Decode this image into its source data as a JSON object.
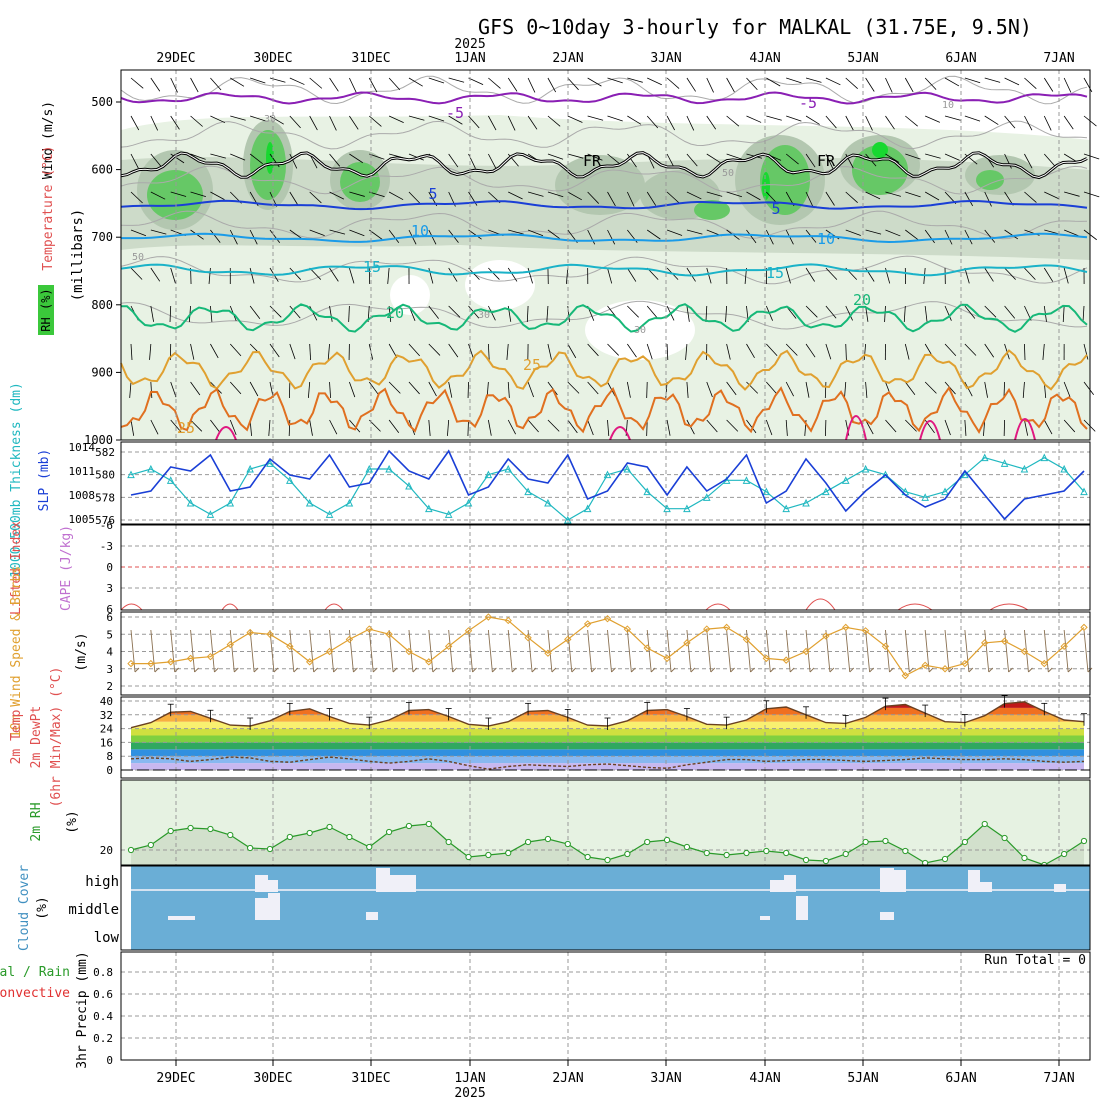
{
  "title": "GFS 0~10day 3-hourly for MALKAL (31.75E, 9.5N)",
  "year_label": "2025",
  "date_labels": [
    "29DEC",
    "30DEC",
    "31DEC",
    "1JAN",
    "2JAN",
    "3JAN",
    "4JAN",
    "5JAN",
    "6JAN",
    "7JAN"
  ],
  "colors": {
    "purple": "#8a1fb4",
    "black": "#000000",
    "blue": "#1a3fd6",
    "lightblue": "#1a9be8",
    "teal": "#1ab2c8",
    "green": "#16b878",
    "orange": "#e0a030",
    "darkorange": "#e07020",
    "magenta": "#e01880",
    "slp": "#1a3fd6",
    "thickness": "#20b8c0",
    "cape": "#e05050",
    "wind": "#e0a030",
    "rh2m": "#2a9a2a",
    "cloud": "#6aaed6"
  },
  "chart_data": [
    {
      "type": "line",
      "name": "upper_air",
      "ylabel": "(millibars)",
      "yaxis_ticks": [
        "500",
        "600",
        "700",
        "800",
        "900",
        "1000"
      ],
      "left_labels": [
        "Wind (m/s)",
        "Temperature (°C)",
        "RH (%)"
      ],
      "isotherm_labels": [
        "-5",
        "-5",
        "FR",
        "FR",
        "5",
        "5",
        "10",
        "10",
        "15",
        "15",
        "20",
        "20",
        "25",
        "25"
      ],
      "rh_labels": [
        "30",
        "50",
        "30",
        "30",
        "10",
        "50"
      ]
    },
    {
      "type": "line",
      "name": "slp_thickness",
      "left_labels": [
        "1000-500mb Thickness (dm)",
        "SLP (mb)"
      ],
      "yticks_left": [
        "582",
        "580",
        "578",
        "576"
      ],
      "yticks_right": [
        "1014",
        "1011",
        "1008",
        "1005"
      ],
      "slp": [
        1008.0,
        1008.5,
        1011.5,
        1011.0,
        1013.0,
        1008.5,
        1009.0,
        1012.5,
        1010.5,
        1010.0,
        1013.0,
        1009.0,
        1009.5,
        1013.5,
        1011.0,
        1010.0,
        1013.5,
        1008.0,
        1009.0,
        1012.5,
        1010.0,
        1009.5,
        1013.0,
        1007.5,
        1008.5,
        1012.0,
        1011.5,
        1008.0,
        1011.5,
        1008.5,
        1010.0,
        1013.0,
        1007.0,
        1008.5,
        1012.5,
        1009.5,
        1006.0,
        1008.5,
        1010.5,
        1008.0,
        1006.5,
        1007.5,
        1011.0,
        1008.0,
        1005.0,
        1007.5,
        1008.0,
        1008.5,
        1011.0
      ],
      "thickness": [
        580.0,
        580.5,
        579.5,
        577.5,
        576.5,
        577.5,
        580.5,
        581.0,
        579.5,
        577.5,
        576.5,
        577.5,
        580.5,
        580.5,
        579.0,
        577.0,
        576.5,
        577.5,
        580.0,
        580.5,
        578.5,
        577.5,
        576.0,
        577.0,
        580.0,
        580.5,
        578.5,
        577.0,
        577.0,
        578.0,
        579.5,
        579.5,
        578.5,
        577.0,
        577.5,
        578.5,
        579.5,
        580.5,
        580.0,
        578.5,
        578.0,
        578.5,
        580.0,
        581.5,
        581.0,
        580.5,
        581.5,
        580.5,
        578.5
      ]
    },
    {
      "type": "line",
      "name": "cape_li",
      "left_labels": [
        "Lifted Index",
        "CAPE (J/kg)"
      ],
      "yticks": [
        "-6",
        "-3",
        "0",
        "3",
        "6"
      ]
    },
    {
      "type": "line",
      "name": "wind10m",
      "left_labels": [
        "10m Wind Speed & Barbs",
        "(m/s)"
      ],
      "yticks": [
        "2",
        "3",
        "4",
        "5",
        "6"
      ],
      "speed": [
        3.3,
        3.3,
        3.4,
        3.6,
        3.7,
        4.4,
        5.1,
        5.0,
        4.3,
        3.4,
        4.0,
        4.7,
        5.3,
        5.0,
        4.0,
        3.4,
        4.3,
        5.2,
        6.0,
        5.8,
        4.8,
        3.9,
        4.7,
        5.6,
        5.9,
        5.3,
        4.2,
        3.6,
        4.5,
        5.3,
        5.4,
        4.7,
        3.6,
        3.5,
        4.0,
        4.9,
        5.4,
        5.2,
        4.3,
        2.6,
        3.2,
        3.0,
        3.3,
        4.5,
        4.6,
        4.0,
        3.3,
        4.3,
        5.4
      ]
    },
    {
      "type": "area",
      "name": "temp2m",
      "left_labels": [
        "2m Temp",
        "2m DewPt",
        "(6hr Min/Max) (°C)"
      ],
      "yticks": [
        "0",
        "8",
        "16",
        "24",
        "32",
        "40"
      ],
      "temp": [
        24.5,
        27.5,
        33.5,
        34.0,
        30.0,
        26.0,
        25.5,
        28.5,
        34.0,
        35.5,
        31.0,
        27.0,
        26.0,
        29.0,
        34.5,
        35.0,
        31.0,
        26.5,
        25.5,
        28.0,
        34.0,
        34.5,
        30.5,
        26.0,
        25.5,
        28.5,
        34.5,
        35.0,
        31.0,
        26.5,
        26.0,
        29.0,
        35.5,
        36.5,
        32.0,
        27.5,
        27.0,
        30.5,
        37.0,
        38.0,
        33.0,
        28.0,
        27.5,
        31.5,
        38.5,
        39.5,
        34.0,
        29.0,
        28.0
      ],
      "dewpt": [
        6.5,
        7.0,
        6.5,
        5.0,
        6.0,
        7.5,
        7.0,
        5.0,
        4.5,
        6.0,
        7.5,
        6.5,
        5.0,
        4.0,
        5.0,
        6.5,
        5.0,
        2.5,
        0.5,
        2.0,
        3.0,
        2.5,
        2.0,
        3.0,
        3.5,
        2.5,
        1.5,
        1.0,
        3.0,
        4.5,
        6.0,
        6.0,
        5.0,
        5.5,
        6.0,
        6.0,
        5.5,
        5.0,
        5.5,
        6.0,
        7.0,
        6.5,
        6.0,
        6.0,
        6.5,
        6.0,
        5.0,
        4.5,
        5.0
      ]
    },
    {
      "type": "area",
      "name": "rh2m",
      "left_labels": [
        "2m RH",
        "(%)"
      ],
      "yticks": [
        "20"
      ],
      "rh": [
        20.0,
        22.5,
        29.5,
        31.0,
        30.5,
        27.5,
        21.0,
        20.5,
        26.5,
        28.5,
        31.5,
        26.5,
        21.5,
        29.0,
        32.0,
        33.0,
        24.0,
        16.5,
        17.5,
        18.5,
        24.0,
        25.5,
        23.0,
        16.5,
        15.0,
        18.0,
        24.0,
        25.0,
        21.5,
        18.5,
        17.5,
        18.5,
        19.5,
        18.5,
        15.0,
        14.5,
        18.0,
        24.0,
        24.5,
        19.5,
        13.5,
        15.5,
        24.0,
        33.0,
        26.0,
        16.0,
        12.5,
        18.0,
        24.5
      ]
    },
    {
      "type": "bar",
      "name": "cloud_cover",
      "left_labels": [
        "Cloud Cover",
        "(%)"
      ],
      "layers": [
        "high",
        "middle",
        "low"
      ]
    },
    {
      "type": "bar",
      "name": "precip",
      "left_labels": [
        "3hr Precip (mm)",
        "Total / Rain",
        "Convective"
      ],
      "yticks": [
        "0",
        "0.2",
        "0.4",
        "0.6",
        "0.8"
      ],
      "run_total": "Run Total = 0"
    }
  ]
}
